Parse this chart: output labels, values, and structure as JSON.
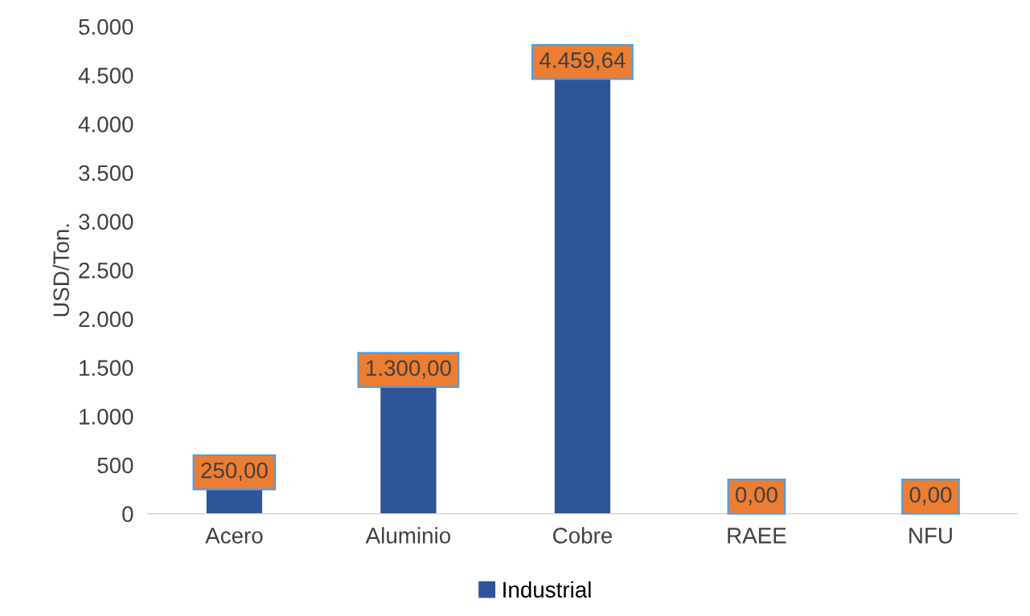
{
  "chart_data": {
    "type": "bar",
    "ylabel": "USD/Ton.",
    "categories": [
      "Acero",
      "Aluminio",
      "Cobre",
      "RAEE",
      "NFU"
    ],
    "series": [
      {
        "name": "Industrial",
        "color": "#2e5597",
        "values": [
          250,
          1300,
          4459.64,
          0,
          0
        ],
        "value_labels": [
          "250,00",
          "1.300,00",
          "4.459,64",
          "0,00",
          "0,00"
        ]
      }
    ],
    "ylim": [
      0,
      5000
    ],
    "yticks": [
      {
        "value": 0,
        "label": "0"
      },
      {
        "value": 500,
        "label": "500"
      },
      {
        "value": 1000,
        "label": "1.000"
      },
      {
        "value": 1500,
        "label": "1.500"
      },
      {
        "value": 2000,
        "label": "2.000"
      },
      {
        "value": 2500,
        "label": "2.500"
      },
      {
        "value": 3000,
        "label": "3.000"
      },
      {
        "value": 3500,
        "label": "3.500"
      },
      {
        "value": 4000,
        "label": "4.000"
      },
      {
        "value": 4500,
        "label": "4.500"
      },
      {
        "value": 5000,
        "label": "5.000"
      }
    ],
    "grid": false,
    "legend": "bottom"
  }
}
